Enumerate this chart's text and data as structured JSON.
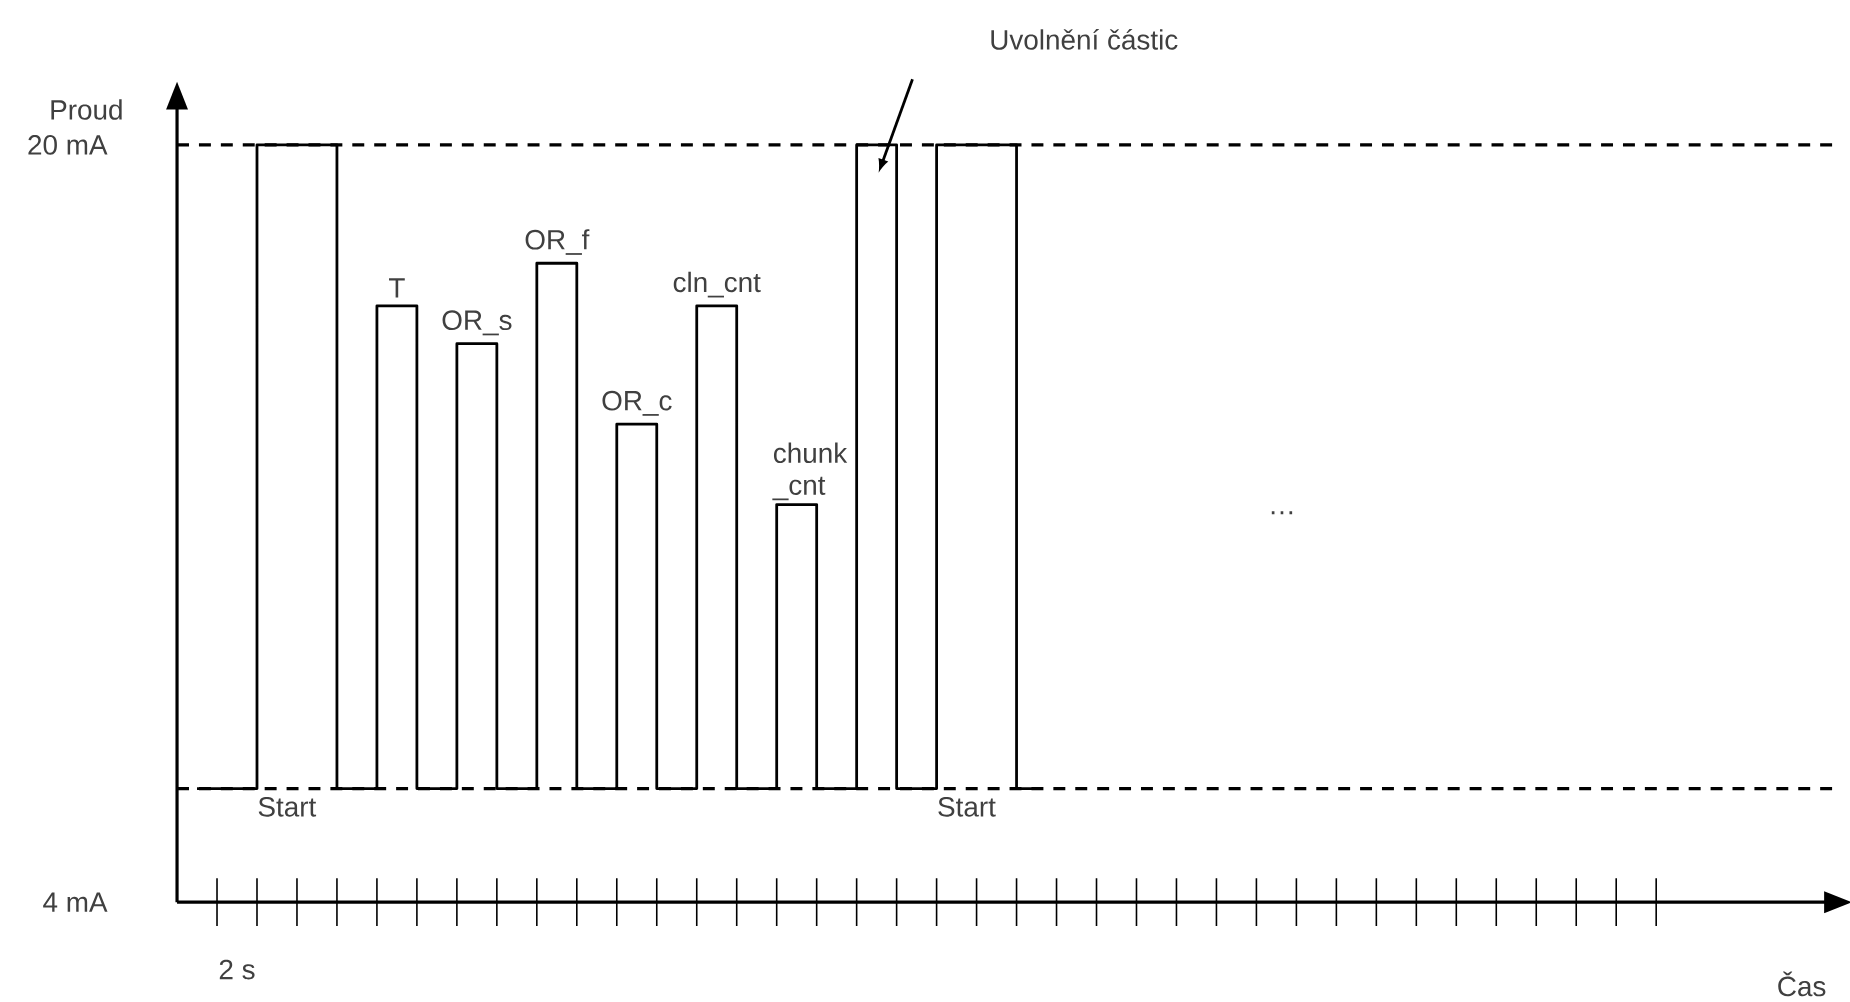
{
  "chart_data": {
    "type": "step",
    "ylabel": "Proud",
    "categories": [
      null,
      null,
      null,
      null,
      null,
      null,
      null,
      null,
      null,
      null,
      null,
      null,
      null,
      null,
      null,
      null,
      null,
      null,
      null,
      null,
      null,
      null
    ],
    "values": [
      6.4,
      6.4,
      20,
      20,
      6.4,
      16.6,
      6.4,
      15.8,
      6.4,
      17.5,
      6.4,
      14.1,
      6.4,
      16.6,
      6.4,
      12.4,
      6.4,
      20,
      6.4,
      20,
      20,
      6.4
    ],
    "color": "#000000",
    "line_style": "solid",
    "marker": "none",
    "ylim": [
      4,
      21
    ],
    "yticks": [
      {
        "value": 4,
        "label": "4 mA"
      },
      {
        "value": 20,
        "label": "20 mA"
      }
    ],
    "ref_lines": [
      {
        "axis": "y",
        "value": 20,
        "line_style": "dashed",
        "color": "#000000"
      },
      {
        "axis": "y",
        "value": 6.4,
        "line_style": "dashed",
        "color": "#000000"
      }
    ],
    "annotations": [
      "T",
      "OR_s",
      "OR_f",
      "OR_c",
      "cln_cnt",
      "chunk _cnt",
      "Start",
      "Start",
      "Uvolnění částic",
      "2 s",
      "…",
      "Čas"
    ]
  }
}
